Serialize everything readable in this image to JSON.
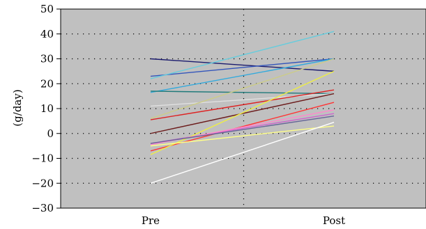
{
  "chart_data": {
    "type": "line",
    "title": "",
    "xlabel": "",
    "ylabel": "(g/day)",
    "categories": [
      "Pre",
      "Post"
    ],
    "ylim": [
      -30,
      50
    ],
    "yticks": [
      50,
      40,
      30,
      20,
      10,
      0,
      -10,
      -20,
      -30
    ],
    "ytick_labels": [
      "50",
      "40",
      "30",
      "20",
      "10",
      "0",
      "−10",
      "−20",
      "−30"
    ],
    "grid": "dotted",
    "background": "#c0c0c0",
    "series": [
      {
        "color": "#1a1a6e",
        "values": [
          30,
          25
        ]
      },
      {
        "color": "#3355bb",
        "values": [
          23,
          30
        ]
      },
      {
        "color": "#33aadd",
        "values": [
          16.5,
          30
        ]
      },
      {
        "color": "#66ccdd",
        "values": [
          22,
          41
        ]
      },
      {
        "color": "#1f7a7a",
        "values": [
          17,
          16
        ]
      },
      {
        "color": "#e0e0e0",
        "values": [
          11,
          16
        ]
      },
      {
        "color": "#cccc88",
        "values": [
          6,
          30
        ]
      },
      {
        "color": "#dd2222",
        "values": [
          5.5,
          17.5
        ]
      },
      {
        "color": "#6b1a1a",
        "values": [
          0,
          16
        ]
      },
      {
        "color": "#ff3333",
        "values": [
          -7,
          12.5
        ]
      },
      {
        "color": "#eeee44",
        "values": [
          -8.5,
          25
        ]
      },
      {
        "color": "#cc66cc",
        "values": [
          -4,
          8
        ]
      },
      {
        "color": "#ff88cc",
        "values": [
          -4.5,
          9.5
        ]
      },
      {
        "color": "#666699",
        "values": [
          -4,
          7
        ]
      },
      {
        "color": "#ffff88",
        "values": [
          -5,
          3
        ]
      },
      {
        "color": "#ffffff",
        "values": [
          -20,
          4.5
        ]
      }
    ]
  }
}
